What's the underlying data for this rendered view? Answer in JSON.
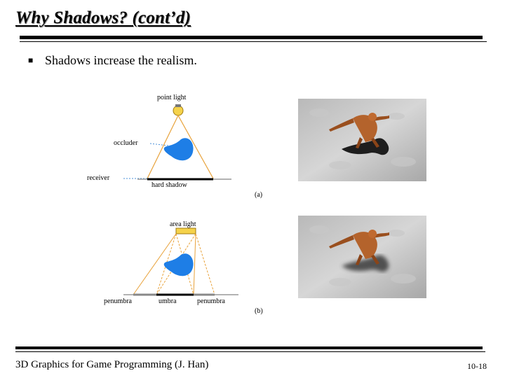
{
  "slide": {
    "title": "Why Shadows? (cont’d)",
    "bullet": "Shadows increase the realism.",
    "footer_left": "3D Graphics for Game Programming (J. Han)",
    "footer_right": "10-18"
  },
  "figure": {
    "label_point_light": "point light",
    "label_occluder": "occluder",
    "label_receiver": "receiver",
    "label_hard_shadow": "hard shadow",
    "caption_a": "(a)",
    "label_area_light": "area light",
    "label_penumbra_left": "penumbra",
    "label_umbra": "umbra",
    "label_penumbra_right": "penumbra",
    "caption_b": "(b)"
  },
  "colors": {
    "occluder_blue": "#1e7ee6",
    "light_yellow": "#f5d24a",
    "ray_orange": "#e8a23a",
    "dashed_blue": "#4a90d9"
  }
}
